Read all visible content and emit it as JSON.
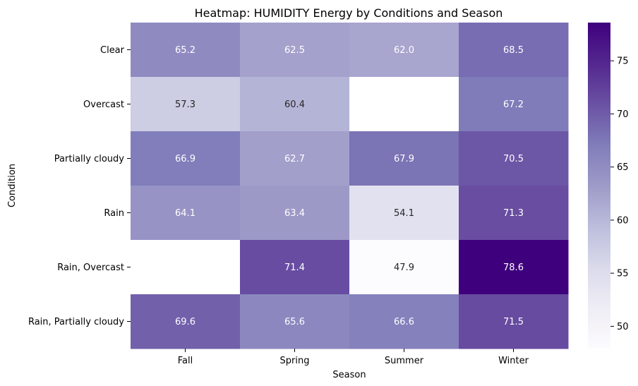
{
  "chart_data": {
    "type": "heatmap",
    "title": "Heatmap: HUMIDITY Energy by Conditions and Season",
    "xlabel": "Season",
    "ylabel": "Condition",
    "columns": [
      "Fall",
      "Spring",
      "Summer",
      "Winter"
    ],
    "rows": [
      "Clear",
      "Overcast",
      "Partially cloudy",
      "Rain",
      "Rain, Overcast",
      "Rain, Partially cloudy"
    ],
    "values": [
      [
        65.2,
        62.5,
        62.0,
        68.5
      ],
      [
        57.3,
        60.4,
        null,
        67.2
      ],
      [
        66.9,
        62.7,
        67.9,
        70.5
      ],
      [
        64.1,
        63.4,
        54.1,
        71.3
      ],
      [
        null,
        71.4,
        47.9,
        78.6
      ],
      [
        69.6,
        65.6,
        66.6,
        71.5
      ]
    ],
    "value_labels": [
      [
        "65.2",
        "62.5",
        "62.0",
        "68.5"
      ],
      [
        "57.3",
        "60.4",
        "",
        "67.2"
      ],
      [
        "66.9",
        "62.7",
        "67.9",
        "70.5"
      ],
      [
        "64.1",
        "63.4",
        "54.1",
        "71.3"
      ],
      [
        "",
        "71.4",
        "47.9",
        "78.6"
      ],
      [
        "69.6",
        "65.6",
        "66.6",
        "71.5"
      ]
    ],
    "colorbar": {
      "colormap": "Purples",
      "vmin": 47.9,
      "vmax": 78.6,
      "ticks": [
        50,
        55,
        60,
        65,
        70,
        75
      ],
      "tick_labels": [
        "50",
        "55",
        "60",
        "65",
        "70",
        "75"
      ]
    },
    "colors": {
      "ramp": [
        "#fcfbfd",
        "#efedf5",
        "#dadaeb",
        "#bcbddc",
        "#9e9ac8",
        "#807dba",
        "#6a51a3",
        "#54278f",
        "#3f007d"
      ],
      "text_dark": "#262626",
      "text_light": "#ffffff",
      "missing": "#ffffff"
    }
  }
}
